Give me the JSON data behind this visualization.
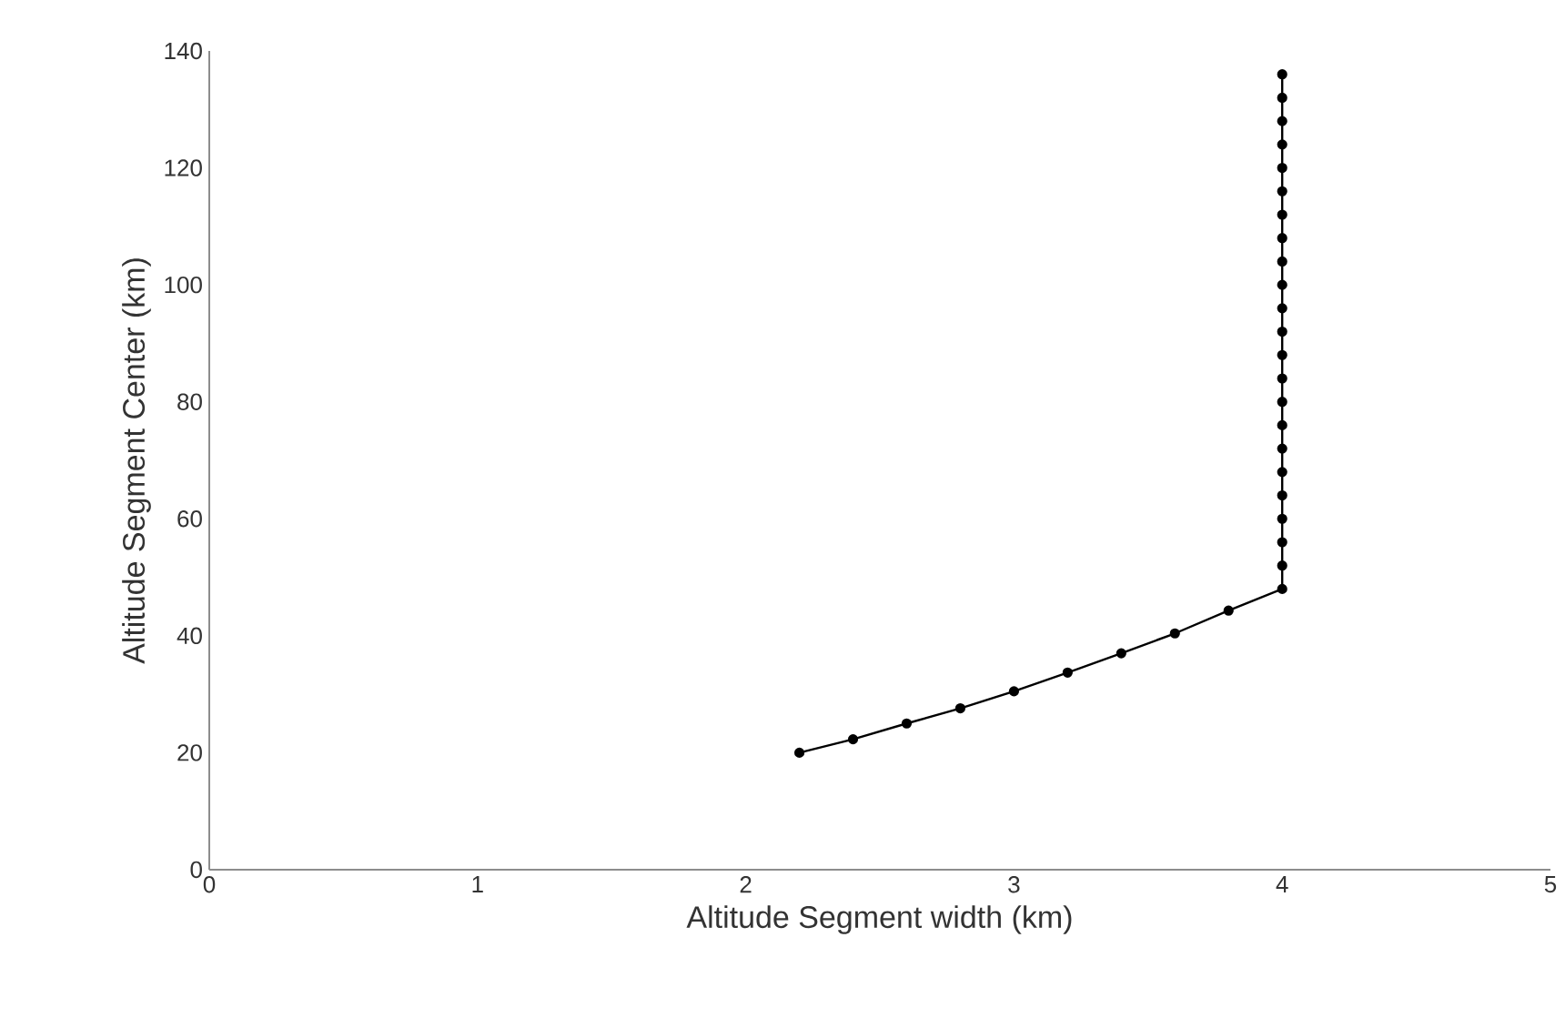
{
  "chart_data": {
    "type": "line",
    "xlabel": "Altitude Segment width (km)",
    "ylabel": "Altitude Segment Center (km)",
    "xlim": [
      0,
      5
    ],
    "xticks": [
      0,
      1,
      2,
      3,
      4,
      5
    ],
    "ylim": [
      0,
      140
    ],
    "yticks": [
      0,
      20,
      40,
      60,
      80,
      100,
      120,
      140
    ],
    "grid": false,
    "marker": "circle",
    "line_style": "solid",
    "series": [
      {
        "color": "#000000",
        "x": [
          2.2,
          2.4,
          2.6,
          2.8,
          3.0,
          3.2,
          3.4,
          3.6,
          3.8,
          4,
          4,
          4,
          4,
          4,
          4,
          4,
          4,
          4,
          4,
          4,
          4,
          4,
          4,
          4,
          4,
          4,
          4,
          4,
          4,
          4,
          4,
          4
        ],
        "values": [
          20,
          22.3,
          25,
          27.6,
          30.5,
          33.7,
          37,
          40.4,
          44.3,
          48,
          52,
          56,
          60,
          64,
          68,
          72,
          76,
          80,
          84,
          88,
          92,
          96,
          100,
          104,
          108,
          112,
          116,
          120,
          124,
          128,
          132,
          136
        ]
      }
    ]
  }
}
